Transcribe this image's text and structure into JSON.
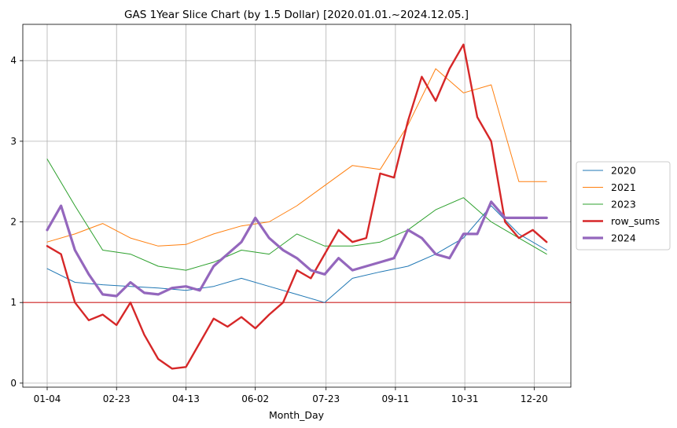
{
  "chart_data": {
    "type": "line",
    "title": "GAS 1Year Slice Chart (by 1.5 Dollar) [2020.01.01.~2024.12.05.]",
    "xlabel": "Month_Day",
    "ylabel": "",
    "x_ticks": [
      "01-04",
      "02-23",
      "04-13",
      "06-02",
      "07-23",
      "09-11",
      "10-31",
      "12-20"
    ],
    "y_ticks": [
      0,
      1,
      2,
      3,
      4
    ],
    "ylim": [
      -0.05,
      4.45
    ],
    "grid": true,
    "legend_position": "center-right",
    "reference_line": {
      "y": 1.0,
      "color": "#d62728"
    },
    "series": [
      {
        "name": "2020",
        "color": "#1f77b4",
        "x": [
          "01-04",
          "01-24",
          "02-13",
          "03-04",
          "03-24",
          "04-13",
          "05-03",
          "05-23",
          "06-12",
          "07-02",
          "07-22",
          "08-11",
          "08-31",
          "09-20",
          "10-10",
          "10-30",
          "11-19",
          "12-09",
          "12-29"
        ],
        "y": [
          1.42,
          1.25,
          1.22,
          1.2,
          1.18,
          1.15,
          1.2,
          1.3,
          1.2,
          1.1,
          1.0,
          1.3,
          1.38,
          1.45,
          1.6,
          1.8,
          2.2,
          1.85,
          1.65
        ]
      },
      {
        "name": "2021",
        "color": "#ff7f0e",
        "x": [
          "01-04",
          "01-24",
          "02-13",
          "03-04",
          "03-24",
          "04-13",
          "05-03",
          "05-23",
          "06-12",
          "07-02",
          "07-22",
          "08-11",
          "08-31",
          "09-20",
          "10-10",
          "10-30",
          "11-19",
          "12-09",
          "12-29"
        ],
        "y": [
          1.75,
          1.85,
          1.98,
          1.8,
          1.7,
          1.72,
          1.85,
          1.95,
          2.0,
          2.2,
          2.45,
          2.7,
          2.65,
          3.2,
          3.9,
          3.6,
          3.7,
          2.5,
          2.5
        ]
      },
      {
        "name": "2023",
        "color": "#2ca02c",
        "x": [
          "01-04",
          "01-24",
          "02-13",
          "03-04",
          "03-24",
          "04-13",
          "05-03",
          "05-23",
          "06-12",
          "07-02",
          "07-22",
          "08-11",
          "08-31",
          "09-20",
          "10-10",
          "10-30",
          "11-19",
          "12-09",
          "12-29"
        ],
        "y": [
          2.78,
          2.2,
          1.65,
          1.6,
          1.45,
          1.4,
          1.5,
          1.65,
          1.6,
          1.85,
          1.7,
          1.7,
          1.75,
          1.9,
          2.15,
          2.3,
          2.0,
          1.8,
          1.6
        ]
      },
      {
        "name": "row_sums",
        "color": "#d62728",
        "x": [
          "01-04",
          "01-14",
          "01-24",
          "02-03",
          "02-13",
          "02-23",
          "03-04",
          "03-14",
          "03-24",
          "04-03",
          "04-13",
          "04-23",
          "05-03",
          "05-13",
          "05-23",
          "06-02",
          "06-12",
          "06-22",
          "07-02",
          "07-12",
          "07-22",
          "08-01",
          "08-11",
          "08-21",
          "08-31",
          "09-10",
          "09-20",
          "09-30",
          "10-10",
          "10-20",
          "10-30",
          "11-09",
          "11-19",
          "11-29",
          "12-09",
          "12-19",
          "12-29"
        ],
        "y": [
          1.7,
          1.6,
          1.0,
          0.78,
          0.85,
          0.72,
          1.0,
          0.6,
          0.3,
          0.18,
          0.2,
          0.5,
          0.8,
          0.7,
          0.82,
          0.68,
          0.85,
          1.0,
          1.4,
          1.3,
          1.6,
          1.9,
          1.75,
          1.8,
          2.6,
          2.55,
          3.25,
          3.8,
          3.5,
          3.9,
          4.2,
          3.3,
          3.0,
          2.0,
          1.8,
          1.9,
          1.75
        ]
      },
      {
        "name": "2024",
        "color": "#9467bd",
        "x": [
          "01-04",
          "01-14",
          "01-24",
          "02-03",
          "02-13",
          "02-23",
          "03-04",
          "03-14",
          "03-24",
          "04-03",
          "04-13",
          "04-23",
          "05-03",
          "05-13",
          "05-23",
          "06-02",
          "06-12",
          "06-22",
          "07-02",
          "07-12",
          "07-22",
          "08-01",
          "08-11",
          "08-21",
          "08-31",
          "09-10",
          "09-20",
          "09-30",
          "10-10",
          "10-20",
          "10-30",
          "11-09",
          "11-19",
          "11-29",
          "12-09",
          "12-19",
          "12-29"
        ],
        "y": [
          1.9,
          2.2,
          1.65,
          1.35,
          1.1,
          1.08,
          1.25,
          1.12,
          1.1,
          1.18,
          1.2,
          1.15,
          1.45,
          1.6,
          1.75,
          2.05,
          1.8,
          1.65,
          1.55,
          1.4,
          1.35,
          1.55,
          1.4,
          1.45,
          1.5,
          1.55,
          1.9,
          1.8,
          1.6,
          1.55,
          1.85,
          1.85,
          2.25,
          2.05,
          2.05,
          2.05,
          2.05
        ]
      }
    ]
  }
}
